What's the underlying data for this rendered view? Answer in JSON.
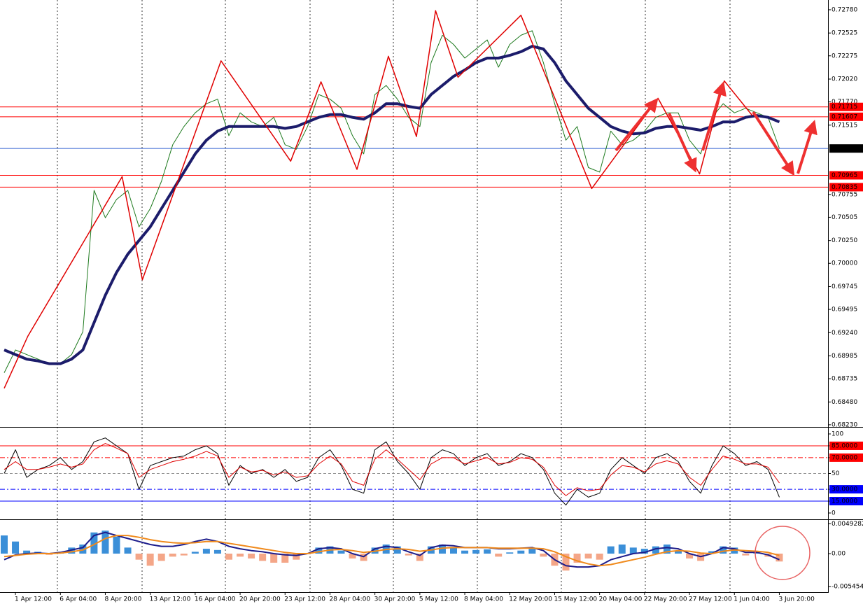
{
  "chart_data": [
    {
      "type": "line",
      "ylim": [
        0.68214,
        0.72887
      ],
      "yticks": [
        {
          "value": 0.7278,
          "label": "0.72780"
        },
        0.72525,
        0.72275,
        {
          "value": 0.7202,
          "label": "0.72020"
        },
        {
          "value": 0.7177,
          "label": "0.71770"
        },
        0.71515,
        0.70755,
        0.70505,
        {
          "value": 0.7025,
          "label": "0.70250"
        },
        {
          "value": 0.7,
          "label": "0.70000"
        },
        0.69745,
        0.69495,
        {
          "value": 0.6924,
          "label": "0.69240"
        },
        0.68985,
        0.68735,
        {
          "value": 0.6848,
          "label": "0.68480"
        },
        {
          "value": 0.6823,
          "label": "0.68230"
        }
      ],
      "levels": [
        {
          "value": 0.71715,
          "color": "#ff0000",
          "label_color": "#ff0000"
        },
        {
          "value": 0.71607,
          "color": "#ff0000",
          "label_color": "#ff0000"
        },
        {
          "value": 0.71259,
          "color": "#3060d0",
          "label_color": "#000000"
        },
        {
          "value": 0.70965,
          "color": "#ff0000",
          "label_color": "#ff0000"
        },
        {
          "value": 0.70835,
          "color": "#ff0000",
          "label_color": "#ff0000"
        }
      ],
      "series": [
        {
          "color": "#1e7a1e",
          "width": 1,
          "values": [
            0.688,
            0.6905,
            0.69,
            0.6895,
            0.689,
            0.689,
            0.69,
            0.6925,
            0.708,
            0.705,
            0.707,
            0.708,
            0.704,
            0.706,
            0.709,
            0.713,
            0.715,
            0.7165,
            0.7175,
            0.718,
            0.714,
            0.7165,
            0.7155,
            0.715,
            0.716,
            0.713,
            0.7125,
            0.715,
            0.7185,
            0.718,
            0.717,
            0.714,
            0.712,
            0.7185,
            0.7195,
            0.718,
            0.716,
            0.715,
            0.722,
            0.725,
            0.724,
            0.7225,
            0.7235,
            0.7245,
            0.7215,
            0.724,
            0.725,
            0.7255,
            0.722,
            0.7175,
            0.7135,
            0.715,
            0.7105,
            0.71,
            0.7145,
            0.713,
            0.7135,
            0.7145,
            0.716,
            0.7165,
            0.7165,
            0.7135,
            0.712,
            0.716,
            0.7175,
            0.7165,
            0.717,
            0.7165,
            0.716,
            0.7126
          ]
        },
        {
          "color": "#1c1c6b",
          "width": 4,
          "values": [
            0.6905,
            0.69,
            0.6895,
            0.6893,
            0.689,
            0.689,
            0.6895,
            0.6905,
            0.6935,
            0.6965,
            0.699,
            0.701,
            0.7025,
            0.704,
            0.706,
            0.708,
            0.71,
            0.712,
            0.7135,
            0.7145,
            0.715,
            0.715,
            0.715,
            0.715,
            0.715,
            0.7148,
            0.715,
            0.7155,
            0.716,
            0.7163,
            0.7163,
            0.716,
            0.7158,
            0.7165,
            0.7175,
            0.7175,
            0.7172,
            0.717,
            0.7185,
            0.7195,
            0.7205,
            0.7212,
            0.722,
            0.7225,
            0.7225,
            0.7228,
            0.7232,
            0.7238,
            0.7235,
            0.722,
            0.72,
            0.7185,
            0.717,
            0.716,
            0.715,
            0.7145,
            0.7142,
            0.7143,
            0.7148,
            0.715,
            0.715,
            0.7148,
            0.7146,
            0.715,
            0.7155,
            0.7155,
            0.716,
            0.7162,
            0.716,
            0.7155
          ]
        },
        {
          "color": "#e00000",
          "width": 1.5,
          "x": [
            0,
            2.1,
            10.5,
            12.3,
            19.3,
            25.5,
            28.2,
            31.4,
            34.2,
            36.7,
            38.4,
            40.4,
            46,
            52.3,
            58.2,
            61.9,
            64.1,
            66.6
          ],
          "values": [
            0.6863,
            0.692,
            0.7095,
            0.6982,
            0.7222,
            0.7112,
            0.7199,
            0.7103,
            0.7227,
            0.7139,
            0.7277,
            0.7204,
            0.7272,
            0.7082,
            0.7181,
            0.7098,
            0.72,
            0.7162
          ]
        }
      ]
    },
    {
      "type": "line",
      "ylim": [
        -7.1,
        106.2
      ],
      "yticks": [
        100,
        {
          "value": 85,
          "label": "85.0000"
        },
        {
          "value": 70,
          "label": "70.0000"
        },
        50,
        {
          "value": 30,
          "label": "30.0000"
        },
        {
          "value": 15,
          "label": "15.0000"
        },
        0
      ],
      "levels": [
        {
          "value": 85,
          "color": "#ff0000",
          "dash": "solid",
          "label_color": "#ff0000"
        },
        {
          "value": 70,
          "color": "#ff0000",
          "dash": "dashdot",
          "label_color": "#ff0000"
        },
        {
          "value": 50,
          "color": "#909090",
          "dash": "dash"
        },
        {
          "value": 30,
          "color": "#0000ff",
          "dash": "dashdot",
          "label_color": "#0000ff"
        },
        {
          "value": 15,
          "color": "#0000ff",
          "dash": "solid",
          "label_color": "#0000ff"
        }
      ],
      "series": [
        {
          "color": "#000000",
          "width": 1,
          "values": [
            50,
            80,
            45,
            55,
            60,
            70,
            55,
            65,
            90,
            95,
            85,
            75,
            30,
            60,
            65,
            70,
            72,
            80,
            85,
            75,
            35,
            60,
            50,
            55,
            45,
            55,
            40,
            45,
            70,
            80,
            60,
            30,
            25,
            80,
            90,
            65,
            50,
            30,
            70,
            80,
            75,
            60,
            70,
            75,
            60,
            65,
            75,
            70,
            55,
            25,
            10,
            30,
            20,
            25,
            55,
            70,
            60,
            50,
            70,
            75,
            65,
            40,
            25,
            60,
            85,
            75,
            60,
            65,
            55,
            20
          ]
        },
        {
          "color": "#e00000",
          "width": 1,
          "values": [
            55,
            65,
            55,
            55,
            58,
            62,
            58,
            62,
            80,
            88,
            82,
            75,
            45,
            55,
            60,
            65,
            68,
            72,
            78,
            72,
            45,
            58,
            52,
            54,
            48,
            52,
            45,
            47,
            62,
            72,
            62,
            40,
            35,
            68,
            80,
            68,
            55,
            42,
            62,
            70,
            70,
            62,
            66,
            70,
            62,
            64,
            70,
            68,
            58,
            35,
            22,
            32,
            28,
            30,
            48,
            60,
            58,
            52,
            62,
            66,
            62,
            45,
            35,
            55,
            72,
            68,
            62,
            62,
            58,
            38
          ]
        }
      ]
    },
    {
      "type": "bar",
      "categories": [
        null,
        "1 Apr 12:00",
        null,
        null,
        null,
        "6 Apr 04:00",
        null,
        null,
        null,
        "8 Apr 20:00",
        null,
        null,
        null,
        "13 Apr 12:00",
        null,
        null,
        null,
        "16 Apr 04:00",
        null,
        null,
        null,
        "20 Apr 20:00",
        null,
        null,
        null,
        "23 Apr 12:00",
        null,
        null,
        null,
        "28 Apr 04:00",
        null,
        null,
        null,
        "30 Apr 20:00",
        null,
        null,
        null,
        "5 May 12:00",
        null,
        null,
        null,
        "8 May 04:00",
        null,
        null,
        null,
        "12 May 20:00",
        null,
        null,
        null,
        "15 May 12:00",
        null,
        null,
        null,
        "20 May 04:00",
        null,
        null,
        null,
        "22 May 20:00",
        null,
        null,
        null,
        "27 May 12:00",
        null,
        null,
        null,
        "1 Jun 04:00",
        null,
        null,
        null,
        "3 Jun 20:00"
      ],
      "ylim": [
        -0.00624,
        0.00532
      ],
      "yticks": [
        0.0049282,
        {
          "value": 0,
          "label": "0.00"
        },
        -0.005454
      ],
      "color": "#3b8fd8",
      "negative_color": "#f4a688",
      "values": [
        0.003,
        0.002,
        0.0005,
        0.0003,
        -0.0002,
        0.0003,
        0.001,
        0.0015,
        0.0035,
        0.0038,
        0.0028,
        0.001,
        -0.001,
        -0.002,
        -0.0012,
        -0.0005,
        -0.0003,
        0.0003,
        0.0008,
        0.0006,
        -0.001,
        -0.0005,
        -0.0008,
        -0.0012,
        -0.0015,
        -0.0015,
        -0.001,
        0.0001,
        0.001,
        0.0012,
        0.0005,
        -0.0008,
        -0.0012,
        0.001,
        0.0015,
        0.0012,
        -0.0003,
        -0.0012,
        0.0012,
        0.0015,
        0.001,
        0.0005,
        0.0006,
        0.0007,
        -0.0005,
        0.0002,
        0.0005,
        0.0008,
        -0.0005,
        -0.002,
        -0.0028,
        -0.0015,
        -0.0008,
        -0.001,
        0.0012,
        0.0015,
        0.001,
        0.0008,
        0.0012,
        0.0015,
        0.0005,
        -0.0008,
        -0.0012,
        0.0004,
        0.0012,
        0.001,
        -0.0003,
        0.0002,
        -0.0005,
        -0.0013
      ],
      "series": [
        {
          "color": "#1c1c8b",
          "width": 2,
          "values": [
            -0.001,
            -0.0002,
            0,
            0.0001,
            0,
            0.0002,
            0.0006,
            0.001,
            0.003,
            0.0035,
            0.003,
            0.0025,
            0.002,
            0.0015,
            0.0012,
            0.0012,
            0.0015,
            0.002,
            0.0024,
            0.002,
            0.0012,
            0.0008,
            0.0005,
            0.0003,
            0,
            -0.0002,
            -0.0003,
            0,
            0.0008,
            0.001,
            0.0008,
            0,
            -0.0005,
            0.0008,
            0.0012,
            0.001,
            0.0003,
            -0.0003,
            0.001,
            0.0014,
            0.0013,
            0.001,
            0.001,
            0.001,
            0.0008,
            0.0008,
            0.0009,
            0.001,
            0.0005,
            -0.001,
            -0.002,
            -0.0022,
            -0.0022,
            -0.002,
            -0.001,
            -0.0005,
            0,
            0.0002,
            0.0008,
            0.001,
            0.0008,
            0,
            -0.0005,
            0,
            0.001,
            0.0008,
            0.0002,
            0.0002,
            -0.0002,
            -0.001
          ]
        },
        {
          "color": "#f08a1c",
          "width": 2,
          "values": [
            -0.0005,
            -0.0003,
            -0.0001,
            0,
            0,
            0.0001,
            0.0003,
            0.0006,
            0.0015,
            0.0025,
            0.003,
            0.003,
            0.0027,
            0.0023,
            0.002,
            0.0018,
            0.0017,
            0.0018,
            0.002,
            0.002,
            0.0017,
            0.0014,
            0.0011,
            0.0008,
            0.0005,
            0.0002,
            0,
            0,
            0.0003,
            0.0006,
            0.0007,
            0.0005,
            0.0002,
            0.0004,
            0.0007,
            0.0008,
            0.0007,
            0.0004,
            0.0006,
            0.0009,
            0.001,
            0.001,
            0.001,
            0.001,
            0.0009,
            0.0009,
            0.0009,
            0.0009,
            0.0008,
            0.0003,
            -0.0005,
            -0.0012,
            -0.0017,
            -0.002,
            -0.0018,
            -0.0014,
            -0.001,
            -0.0006,
            -0.0001,
            0.0003,
            0.0005,
            0.0004,
            0.0001,
            0,
            0.0004,
            0.0006,
            0.0005,
            0.0004,
            0.0002,
            -0.0003
          ]
        }
      ]
    }
  ]
}
